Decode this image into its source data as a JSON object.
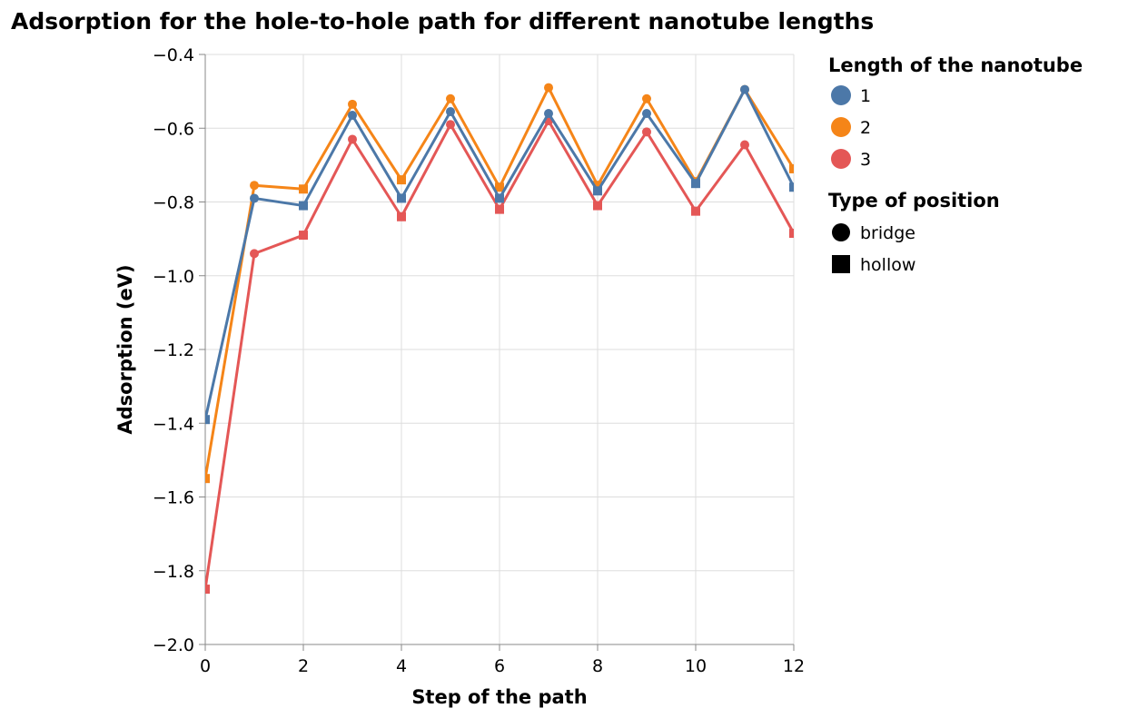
{
  "chart_data": {
    "type": "line",
    "title": "Adsorption for the hole-to-hole path for different nanotube lengths",
    "xlabel": "Step of the path",
    "ylabel": "Adsorption (eV)",
    "xlim": [
      0,
      12
    ],
    "ylim": [
      -2.0,
      -0.4
    ],
    "x_ticks": [
      "0",
      "2",
      "4",
      "6",
      "8",
      "10",
      "12"
    ],
    "y_ticks": [
      "−0.4",
      "−0.6",
      "−0.8",
      "−1.0",
      "−1.2",
      "−1.4",
      "−1.6",
      "−1.8",
      "−2.0"
    ],
    "grid": true,
    "legend_placement": "right",
    "x": [
      0,
      1,
      2,
      3,
      4,
      5,
      6,
      7,
      8,
      9,
      10,
      11,
      12
    ],
    "position_type": [
      "hollow",
      "bridge",
      "hollow",
      "bridge",
      "hollow",
      "bridge",
      "hollow",
      "bridge",
      "hollow",
      "bridge",
      "hollow",
      "bridge",
      "hollow"
    ],
    "series": [
      {
        "name": "1",
        "color": "#4c78a8",
        "values": [
          -1.39,
          -0.79,
          -0.81,
          -0.565,
          -0.79,
          -0.555,
          -0.79,
          -0.56,
          -0.77,
          -0.56,
          -0.75,
          -0.495,
          -0.76
        ]
      },
      {
        "name": "2",
        "color": "#f58518",
        "values": [
          -1.55,
          -0.755,
          -0.765,
          -0.535,
          -0.74,
          -0.52,
          -0.76,
          -0.49,
          -0.755,
          -0.52,
          -0.745,
          -0.495,
          -0.71
        ]
      },
      {
        "name": "3",
        "color": "#e45756",
        "values": [
          -1.85,
          -0.94,
          -0.89,
          -0.63,
          -0.84,
          -0.59,
          -0.82,
          -0.58,
          -0.81,
          -0.61,
          -0.825,
          -0.645,
          -0.885
        ]
      }
    ],
    "legend": {
      "color_title": "Length of the nanotube",
      "color_items": [
        "1",
        "2",
        "3"
      ],
      "shape_title": "Type of position",
      "shape_items": [
        "bridge",
        "hollow"
      ]
    }
  }
}
